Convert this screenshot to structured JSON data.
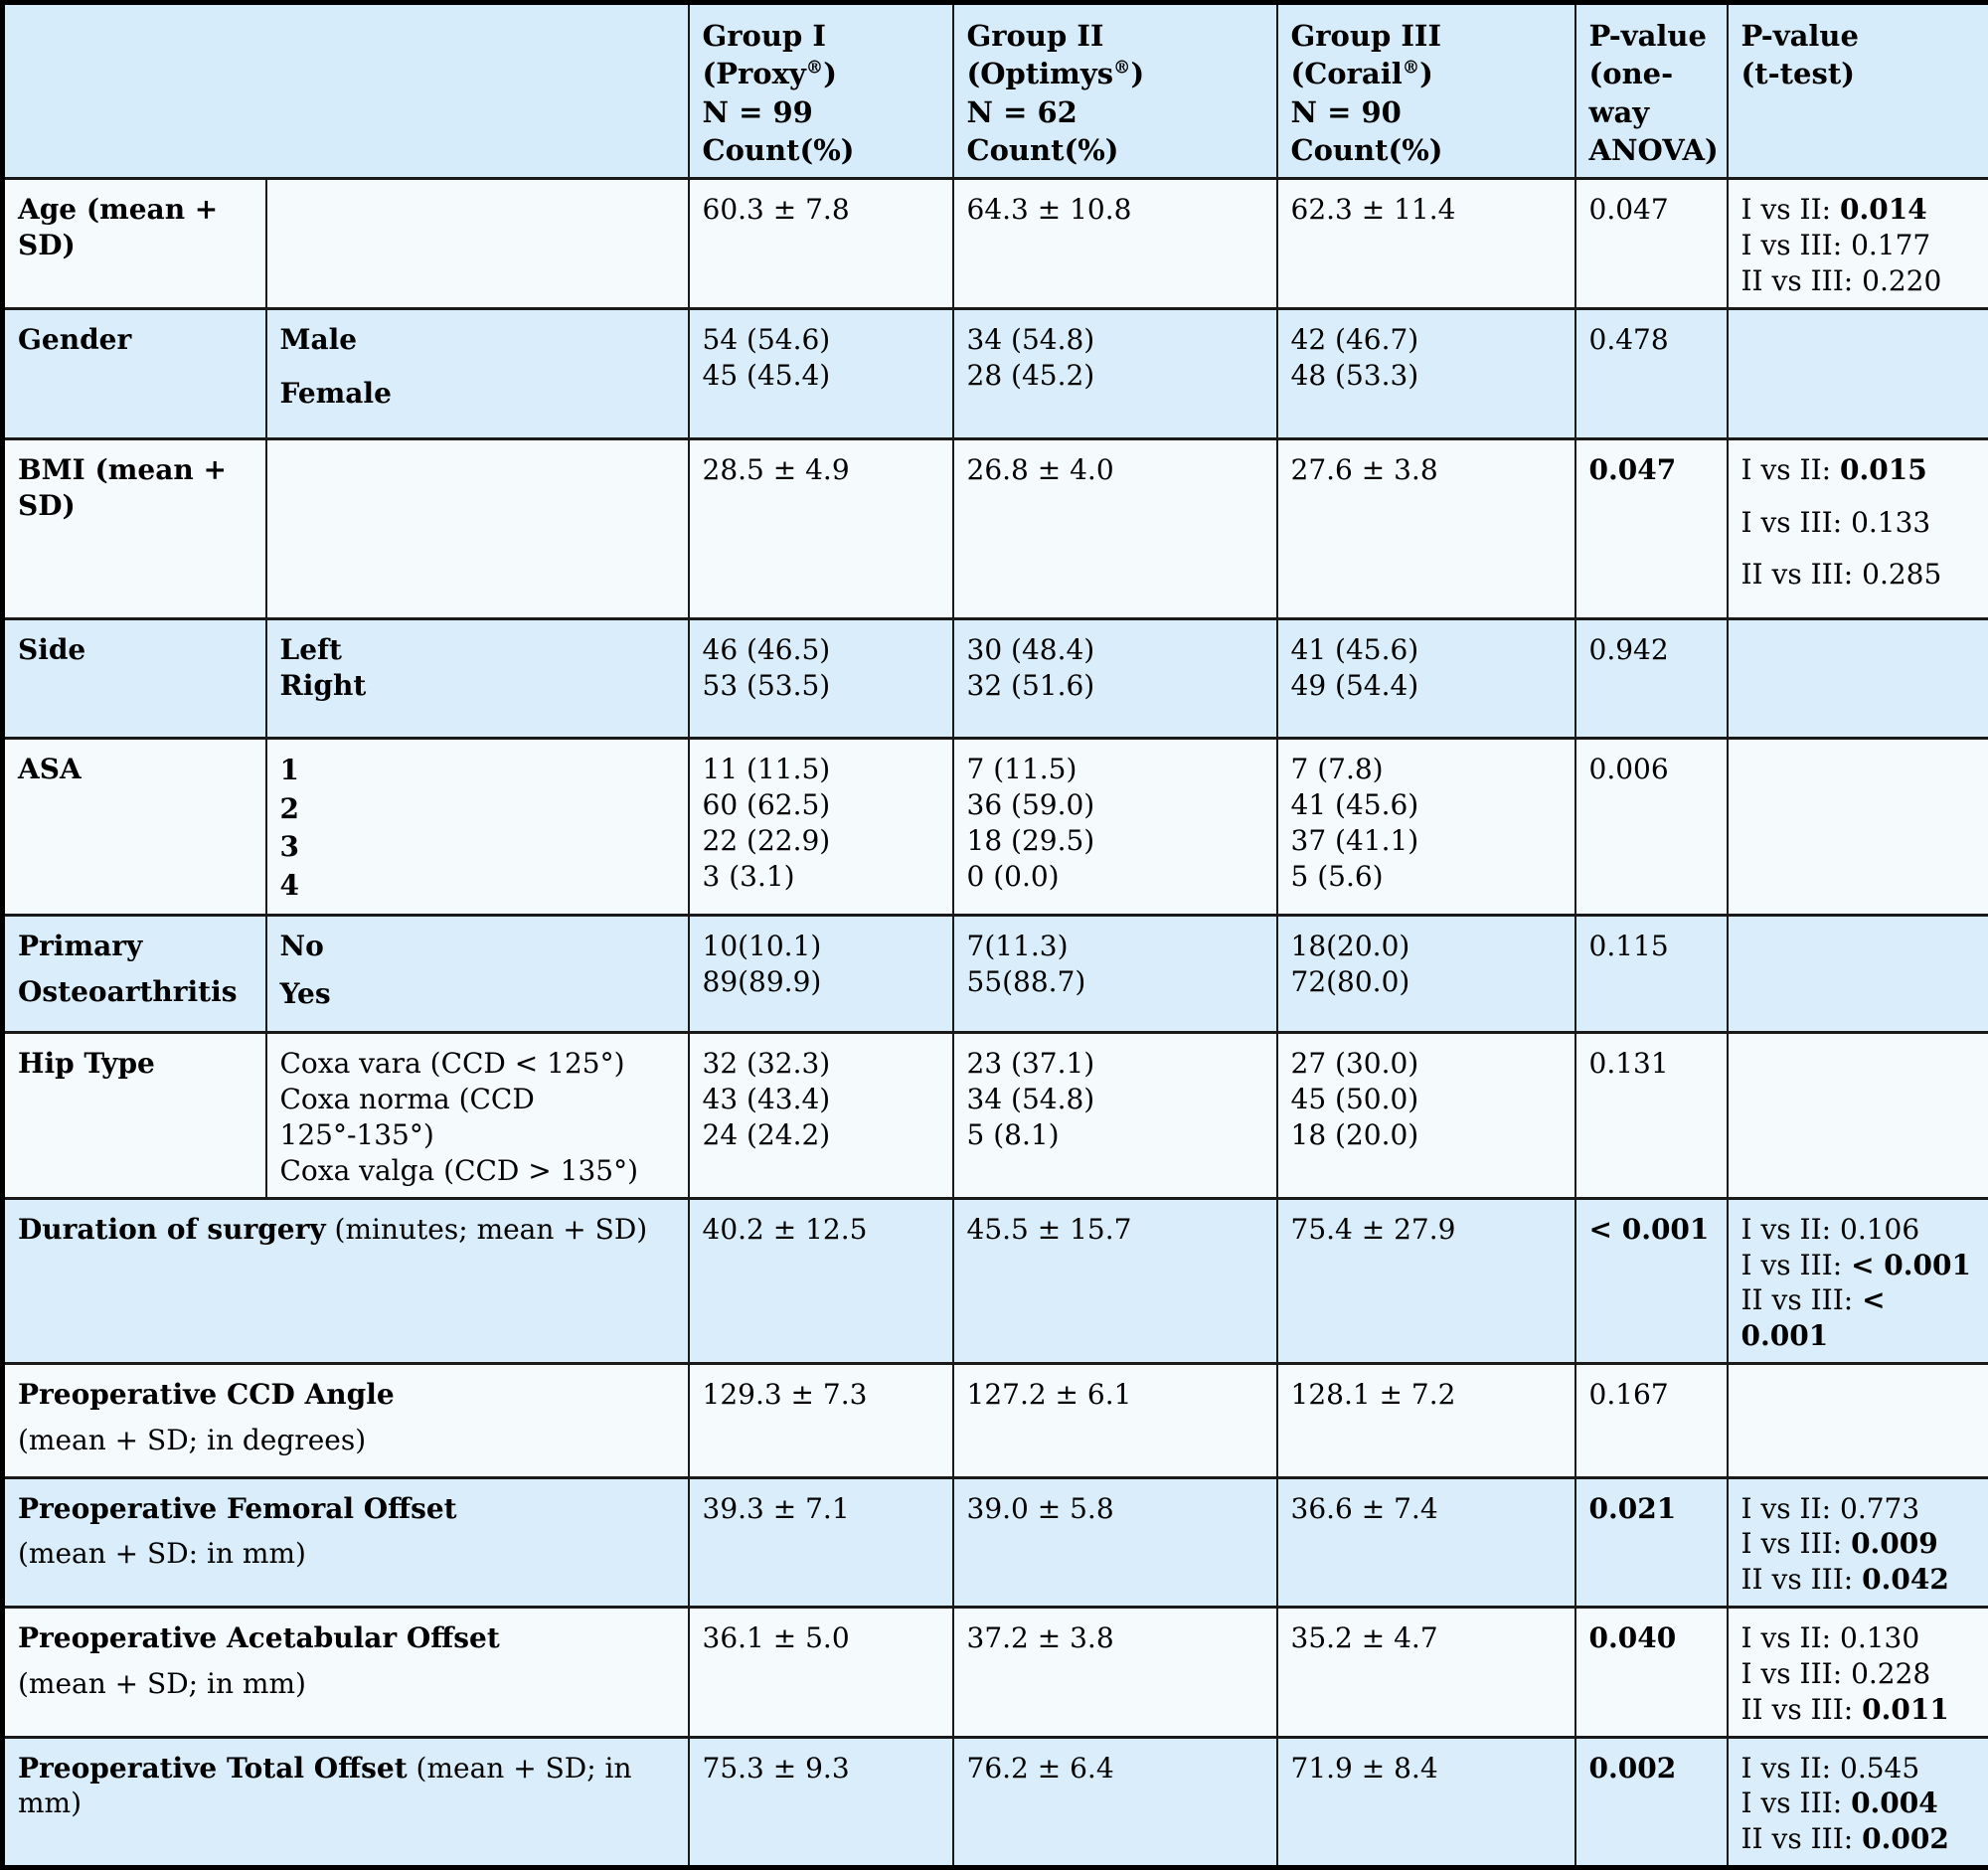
{
  "colors": {
    "header_bg": "#d7ecfa",
    "row_blue": "#d9edfa",
    "row_white": "#f5fafd",
    "border": "#1a1a1a",
    "outer_border": "#000000",
    "text": "#000000"
  },
  "table": {
    "header": [
      {
        "key": "corner",
        "colspan": 2,
        "lines": []
      },
      {
        "key": "group1",
        "lines": [
          "Group I (Proxy®)",
          "N = 99",
          "Count(%)"
        ]
      },
      {
        "key": "group2",
        "lines": [
          "Group II (Optimys®)",
          "N = 62",
          "Count(%)"
        ]
      },
      {
        "key": "group3",
        "lines": [
          "Group III (Corail®)",
          "N = 90",
          "Count(%)"
        ]
      },
      {
        "key": "anova",
        "lines": [
          "P-value",
          "(one-way",
          "ANOVA)"
        ]
      },
      {
        "key": "ttest",
        "lines": [
          "P-value",
          "(t-test)"
        ]
      }
    ],
    "rows": [
      {
        "key": "age",
        "label": [
          [
            {
              "t": "Age (mean + SD)",
              "b": true
            }
          ]
        ],
        "sub": {
          "bold": false,
          "lines": []
        },
        "g1": [
          "60.3 ± 7.8"
        ],
        "g2": [
          "64.3 ± 10.8"
        ],
        "g3": [
          "62.3 ± 11.4"
        ],
        "anova": {
          "t": "0.047",
          "b": false
        },
        "ttest": [
          {
            "pre": "I vs II: ",
            "val": "0.014",
            "b": true
          },
          {
            "pre": "I vs III: ",
            "val": "0.177",
            "b": false
          },
          {
            "pre": "II vs III: ",
            "val": "0.220",
            "b": false
          }
        ]
      },
      {
        "key": "gender",
        "label": [
          [
            {
              "t": "Gender",
              "b": true
            }
          ]
        ],
        "sub": {
          "bold": true,
          "lines": [
            "Male",
            "Female"
          ]
        },
        "g1": [
          "54 (54.6)",
          "45 (45.4)"
        ],
        "g2": [
          "34 (54.8)",
          "28 (45.2)"
        ],
        "g3": [
          "42 (46.7)",
          "48 (53.3)"
        ],
        "anova": {
          "t": "0.478",
          "b": false
        },
        "ttest": []
      },
      {
        "key": "bmi",
        "label": [
          [
            {
              "t": "BMI (mean + SD)",
              "b": true
            }
          ]
        ],
        "sub": {
          "bold": false,
          "lines": []
        },
        "g1": [
          "28.5 ± 4.9"
        ],
        "g2": [
          "26.8 ± 4.0"
        ],
        "g3": [
          "27.6 ± 3.8"
        ],
        "anova": {
          "t": "0.047",
          "b": true
        },
        "ttest": [
          {
            "pre": "I vs II: ",
            "val": "0.015",
            "b": true
          },
          {
            "pre": "I vs III: ",
            "val": "0.133",
            "b": false
          },
          {
            "pre": "II vs III: ",
            "val": "0.285",
            "b": false
          }
        ]
      },
      {
        "key": "side",
        "label": [
          [
            {
              "t": "Side",
              "b": true
            }
          ]
        ],
        "sub": {
          "bold": true,
          "lines": [
            "Left",
            "Right"
          ]
        },
        "g1": [
          "46 (46.5)",
          "53 (53.5)"
        ],
        "g2": [
          "30 (48.4)",
          "32 (51.6)"
        ],
        "g3": [
          "41 (45.6)",
          "49 (54.4)"
        ],
        "anova": {
          "t": "0.942",
          "b": false
        },
        "ttest": []
      },
      {
        "key": "asa",
        "label": [
          [
            {
              "t": "ASA",
              "b": true
            }
          ]
        ],
        "sub": {
          "bold": true,
          "lines": [
            "1",
            "2",
            "3",
            "4"
          ]
        },
        "g1": [
          "11 (11.5)",
          "60 (62.5)",
          "22 (22.9)",
          "3 (3.1)"
        ],
        "g2": [
          "7 (11.5)",
          "36 (59.0)",
          "18 (29.5)",
          "0 (0.0)"
        ],
        "g3": [
          "7 (7.8)",
          "41 (45.6)",
          "37 (41.1)",
          "5 (5.6)"
        ],
        "anova": {
          "t": "0.006",
          "b": false
        },
        "ttest": []
      },
      {
        "key": "osteo",
        "label": [
          [
            {
              "t": "Primary",
              "b": true
            }
          ],
          [
            {
              "t": "Osteoarthritis",
              "b": true
            }
          ]
        ],
        "sub": {
          "bold": true,
          "lines": [
            "No",
            "Yes"
          ]
        },
        "g1": [
          "10(10.1)",
          "89(89.9)"
        ],
        "g2": [
          "7(11.3)",
          "55(88.7)"
        ],
        "g3": [
          "18(20.0)",
          "72(80.0)"
        ],
        "anova": {
          "t": "0.115",
          "b": false
        },
        "ttest": []
      },
      {
        "key": "hip",
        "label": [
          [
            {
              "t": "Hip Type",
              "b": true
            }
          ]
        ],
        "sub": {
          "bold": false,
          "lines": [
            "Coxa vara (CCD < 125°)",
            "Coxa norma (CCD 125°-135°)",
            "Coxa valga (CCD > 135°)"
          ]
        },
        "g1": [
          "32 (32.3)",
          "43 (43.4)",
          "24 (24.2)"
        ],
        "g2": [
          "23 (37.1)",
          "34 (54.8)",
          "5 (8.1)"
        ],
        "g3": [
          "27 (30.0)",
          "45 (50.0)",
          "18 (20.0)"
        ],
        "anova": {
          "t": "0.131",
          "b": false
        },
        "ttest": []
      },
      {
        "key": "duration",
        "label": [
          [
            {
              "t": "Duration of surgery",
              "b": true
            },
            {
              "t": " (minutes; mean + SD)",
              "b": false
            }
          ]
        ],
        "sub": null,
        "g1": [
          "40.2 ± 12.5"
        ],
        "g2": [
          "45.5 ± 15.7"
        ],
        "g3": [
          "75.4 ± 27.9"
        ],
        "anova": {
          "t": "< 0.001",
          "b": true
        },
        "ttest": [
          {
            "pre": "I vs II: ",
            "val": "0.106",
            "b": false
          },
          {
            "pre": "I vs III: ",
            "val": "< 0.001",
            "b": true
          },
          {
            "pre": "II vs III: ",
            "val": "< 0.001",
            "b": true
          }
        ]
      },
      {
        "key": "ccd",
        "label": [
          [
            {
              "t": "Preoperative CCD Angle",
              "b": true
            }
          ],
          [
            {
              "t": "(mean + SD; in degrees)",
              "b": false
            }
          ]
        ],
        "sub": null,
        "g1": [
          "129.3 ± 7.3"
        ],
        "g2": [
          "127.2 ± 6.1"
        ],
        "g3": [
          "128.1 ± 7.2"
        ],
        "anova": {
          "t": "0.167",
          "b": false
        },
        "ttest": []
      },
      {
        "key": "femoral",
        "label": [
          [
            {
              "t": "Preoperative Femoral Offset",
              "b": true
            }
          ],
          [
            {
              "t": "(mean + SD: in mm)",
              "b": false
            }
          ]
        ],
        "sub": null,
        "g1": [
          "39.3 ± 7.1"
        ],
        "g2": [
          "39.0 ± 5.8"
        ],
        "g3": [
          "36.6 ± 7.4"
        ],
        "anova": {
          "t": "0.021",
          "b": true
        },
        "ttest": [
          {
            "pre": "I vs II: ",
            "val": "0.773",
            "b": false
          },
          {
            "pre": "I vs III: ",
            "val": "0.009",
            "b": true
          },
          {
            "pre": "II vs III: ",
            "val": "0.042",
            "b": true
          }
        ]
      },
      {
        "key": "acetabular",
        "label": [
          [
            {
              "t": "Preoperative Acetabular Offset",
              "b": true
            }
          ],
          [
            {
              "t": "(mean + SD; in mm)",
              "b": false
            }
          ]
        ],
        "sub": null,
        "g1": [
          "36.1 ± 5.0"
        ],
        "g2": [
          "37.2 ± 3.8"
        ],
        "g3": [
          "35.2 ± 4.7"
        ],
        "anova": {
          "t": "0.040",
          "b": true
        },
        "ttest": [
          {
            "pre": "I vs II: ",
            "val": "0.130",
            "b": false
          },
          {
            "pre": "I vs III: ",
            "val": "0.228",
            "b": false
          },
          {
            "pre": "II vs III: ",
            "val": "0.011",
            "b": true
          }
        ]
      },
      {
        "key": "total",
        "label": [
          [
            {
              "t": "Preoperative Total Offset",
              "b": true
            },
            {
              "t": " (mean + SD; in mm)",
              "b": false
            }
          ]
        ],
        "sub": null,
        "g1": [
          "75.3 ± 9.3"
        ],
        "g2": [
          "76.2 ± 6.4"
        ],
        "g3": [
          "71.9 ± 8.4"
        ],
        "anova": {
          "t": "0.002",
          "b": true
        },
        "ttest": [
          {
            "pre": "I vs II: ",
            "val": "0.545",
            "b": false
          },
          {
            "pre": "I vs III: ",
            "val": "0.004",
            "b": true
          },
          {
            "pre": "II vs III: ",
            "val": "0.002",
            "b": true
          }
        ]
      }
    ]
  }
}
